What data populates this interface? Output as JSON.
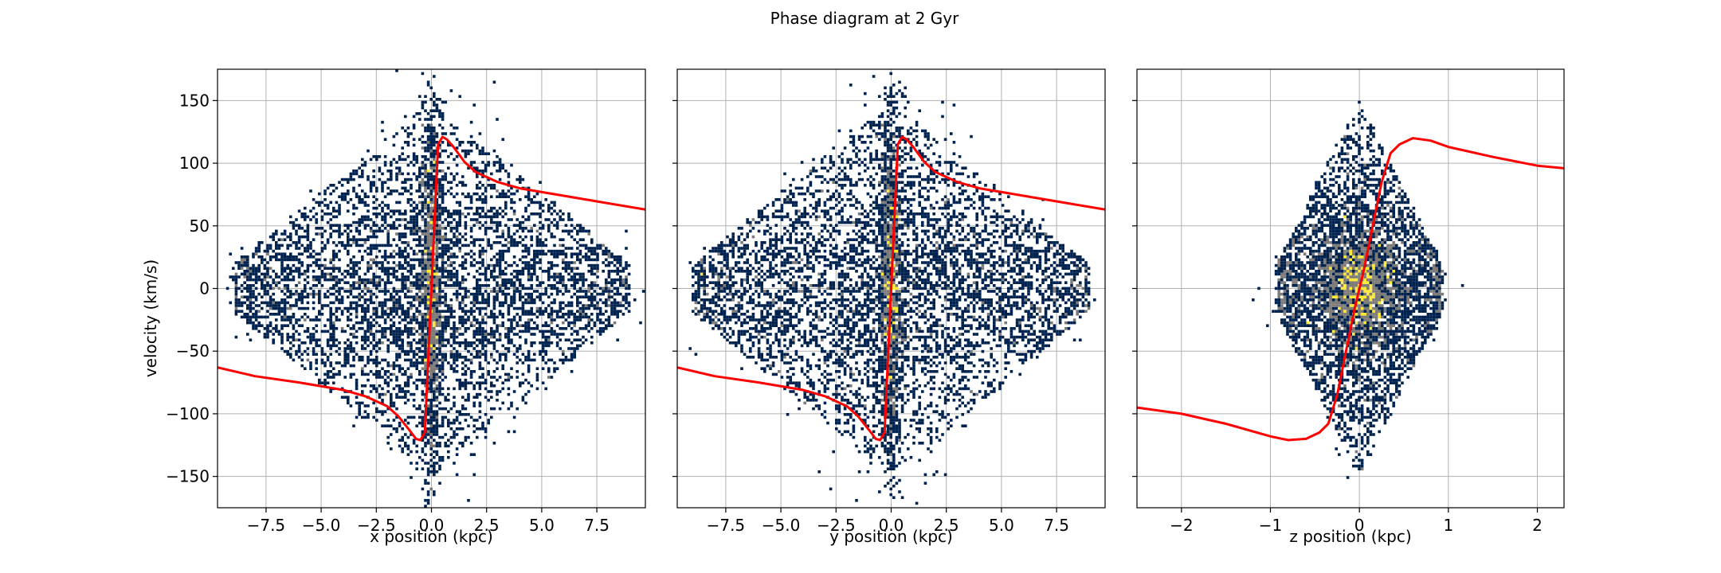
{
  "figure": {
    "title": "Phase diagram at 2 Gyr",
    "ylabel": "velocity (km/s)"
  },
  "colors": {
    "curve": "#ff0000",
    "grid": "#b0b0b0",
    "cmap_low": "#00224e",
    "cmap_mid": "#7c7b78",
    "cmap_high": "#fee838",
    "spine": "#000000"
  },
  "chart_data": [
    {
      "type": "heatmap",
      "xlabel": "x position (kpc)",
      "ylabel": "velocity (km/s)",
      "xlim": [
        -9.7,
        9.7
      ],
      "ylim": [
        -175,
        175
      ],
      "xticks": [
        -7.5,
        -5.0,
        -2.5,
        0.0,
        2.5,
        5.0,
        7.5
      ],
      "xticklabels": [
        "−7.5",
        "−5.0",
        "−2.5",
        "0.0",
        "2.5",
        "5.0",
        "7.5"
      ],
      "yticks": [
        -150,
        -100,
        -50,
        0,
        50,
        100,
        150
      ],
      "yticklabels": [
        "−150",
        "−100",
        "−50",
        "0",
        "50",
        "100",
        "150"
      ],
      "grid": true,
      "density": {
        "x_spread": 3.2,
        "v_spread": 60,
        "core_x": 0.25,
        "core_v": 70,
        "points": 7000
      },
      "curve": {
        "x": [
          -9.7,
          -8,
          -6,
          -4,
          -3,
          -2,
          -1.5,
          -1,
          -0.7,
          -0.5,
          -0.3,
          0,
          0.3,
          0.5,
          0.7,
          1,
          1.5,
          2,
          3,
          4,
          6,
          8,
          9.7
        ],
        "y": [
          -63,
          -70,
          -75,
          -81,
          -86,
          -94,
          -102,
          -113,
          -120,
          -121,
          -115,
          0,
          115,
          121,
          119,
          113,
          101,
          93,
          85,
          80,
          74,
          68,
          63
        ]
      }
    },
    {
      "type": "heatmap",
      "xlabel": "y position (kpc)",
      "ylabel": "",
      "xlim": [
        -9.7,
        9.7
      ],
      "ylim": [
        -175,
        175
      ],
      "xticks": [
        -7.5,
        -5.0,
        -2.5,
        0.0,
        2.5,
        5.0,
        7.5
      ],
      "xticklabels": [
        "−7.5",
        "−5.0",
        "−2.5",
        "0.0",
        "2.5",
        "5.0",
        "7.5"
      ],
      "yticks": [
        -150,
        -100,
        -50,
        0,
        50,
        100,
        150
      ],
      "yticklabels": [],
      "grid": true,
      "density": {
        "x_spread": 3.2,
        "v_spread": 60,
        "core_x": 0.25,
        "core_v": 70,
        "points": 7000
      },
      "curve": {
        "x": [
          -9.7,
          -8,
          -6,
          -4,
          -3,
          -2,
          -1.5,
          -1,
          -0.7,
          -0.5,
          -0.3,
          0,
          0.3,
          0.5,
          0.7,
          1,
          1.5,
          2,
          3,
          4,
          6,
          8,
          9.7
        ],
        "y": [
          -63,
          -70,
          -75,
          -81,
          -86,
          -94,
          -102,
          -113,
          -120,
          -121,
          -115,
          0,
          115,
          121,
          119,
          113,
          101,
          93,
          85,
          80,
          74,
          68,
          63
        ]
      }
    },
    {
      "type": "heatmap",
      "xlabel": "z position (kpc)",
      "ylabel": "",
      "xlim": [
        -2.5,
        2.3
      ],
      "ylim": [
        -175,
        175
      ],
      "xticks": [
        -2,
        -1,
        0,
        1,
        2
      ],
      "xticklabels": [
        "−2",
        "−1",
        "0",
        "1",
        "2"
      ],
      "yticks": [
        -150,
        -100,
        -50,
        0,
        50,
        100,
        150
      ],
      "yticklabels": [],
      "grid": true,
      "density": {
        "x_spread": 0.33,
        "v_spread": 45,
        "core_x": 0.18,
        "core_v": 20,
        "points": 6000
      },
      "curve": {
        "x": [
          -2.5,
          -2.0,
          -1.5,
          -1.0,
          -0.8,
          -0.6,
          -0.45,
          -0.35,
          -0.25,
          -0.15,
          -0.05,
          0,
          0.05,
          0.15,
          0.25,
          0.35,
          0.45,
          0.6,
          0.8,
          1.0,
          1.5,
          2.0,
          2.3
        ],
        "y": [
          -95,
          -100,
          -108,
          -118,
          -121,
          -120,
          -115,
          -108,
          -85,
          -50,
          -15,
          0,
          15,
          50,
          85,
          108,
          115,
          120,
          118,
          113,
          105,
          98,
          96
        ]
      }
    }
  ]
}
